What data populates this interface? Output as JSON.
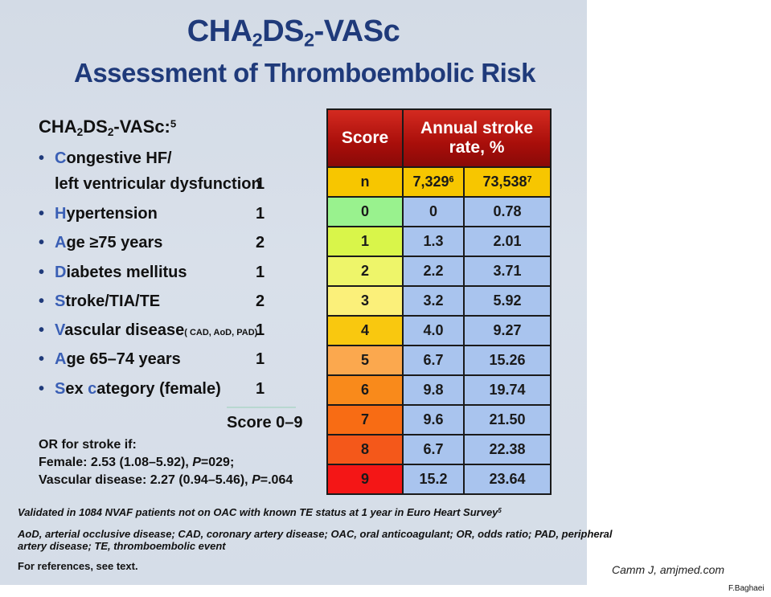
{
  "slide": {
    "title_main": "CHA2DS2-VASc",
    "title_sub": "Assessment of Thromboembolic Risk",
    "criteria_heading": "CHA2DS2-VASc:",
    "criteria_heading_sup": "5",
    "criteria": [
      {
        "first": "C",
        "rest": "ongestive HF/",
        "line2": "left ventricular dysfunction",
        "points": "1"
      },
      {
        "first": "H",
        "rest": "ypertension",
        "points": "1"
      },
      {
        "first": "A",
        "rest": "ge ≥75 years",
        "points": "2"
      },
      {
        "first": "D",
        "rest": "iabetes mellitus",
        "points": "1"
      },
      {
        "first": "S",
        "rest": "troke/TIA/TE",
        "points": "2"
      },
      {
        "first": "V",
        "rest": "ascular disease",
        "small": "( CAD, AoD, PAD)",
        "points": "1"
      },
      {
        "first": "A",
        "rest": "ge 65–74 years",
        "points": "1"
      },
      {
        "first": "S",
        "rest": "ex ",
        "first2": "c",
        "rest2": "ategory (female)",
        "points": "1"
      }
    ],
    "score_range": "Score 0–9",
    "or_heading": "OR for stroke if:",
    "or_female_pre": "Female: 2.53 (1.08–5.92), ",
    "or_female_p": "P",
    "or_female_post": "=029;",
    "or_vasc_pre": "Vascular disease: 2.27 (0.94–5.46), ",
    "or_vasc_p": "P",
    "or_vasc_post": "=.064",
    "footnote_validated": "Validated in 1084 NVAF patients not on OAC with known TE status at 1 year in Euro Heart Survey",
    "footnote_validated_sup": "5",
    "footnote_abbrev_1": "AoD, arterial occlusive disease; CAD, coronary artery disease; OAC, oral anticoagulant; OR, odds ratio; PAD, peripheral",
    "footnote_abbrev_2": "artery disease; TE, thromboembolic event",
    "footnote_refs": "For references, see text."
  },
  "table": {
    "header_score": "Score",
    "header_rate_1": "Annual stroke",
    "header_rate_2": "rate, %",
    "n_label": "n",
    "n_col1": "7,329",
    "n_col1_sup": "6",
    "n_col2": "73,538",
    "n_col2_sup": "7",
    "rows": [
      {
        "score": "0",
        "a": "0",
        "b": "0.78",
        "color": "#99f28e"
      },
      {
        "score": "1",
        "a": "1.3",
        "b": "2.01",
        "color": "#d9f54a"
      },
      {
        "score": "2",
        "a": "2.2",
        "b": "3.71",
        "color": "#eef56a"
      },
      {
        "score": "3",
        "a": "3.2",
        "b": "5.92",
        "color": "#fbf07a"
      },
      {
        "score": "4",
        "a": "4.0",
        "b": "9.27",
        "color": "#f9c80f"
      },
      {
        "score": "5",
        "a": "6.7",
        "b": "15.26",
        "color": "#fba84e"
      },
      {
        "score": "6",
        "a": "9.8",
        "b": "19.74",
        "color": "#f98a1b"
      },
      {
        "score": "7",
        "a": "9.6",
        "b": "21.50",
        "color": "#f86c14"
      },
      {
        "score": "8",
        "a": "6.7",
        "b": "22.38",
        "color": "#f4581a"
      },
      {
        "score": "9",
        "a": "15.2",
        "b": "23.64",
        "color": "#f41616"
      }
    ]
  },
  "credit": "Camm J, amjmed.com",
  "author": "F.Baghaei"
}
